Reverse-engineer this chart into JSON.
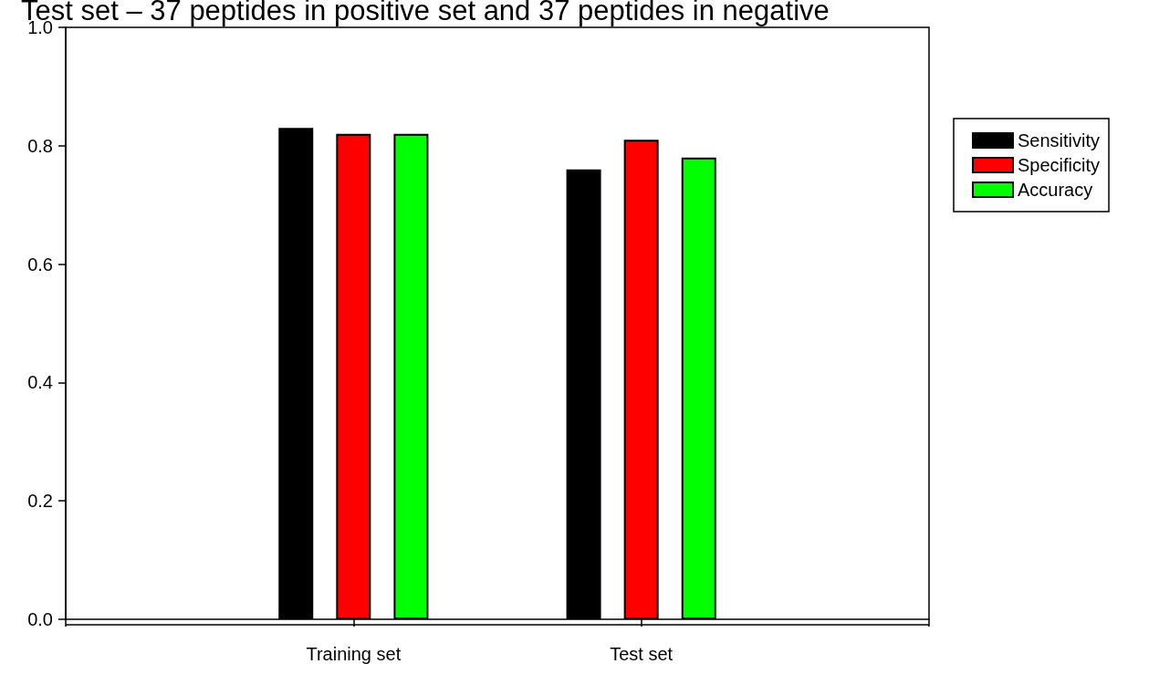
{
  "chart_data": {
    "type": "bar",
    "title": "Test set – 37 peptides in positive set and 37 peptides in negative",
    "categories": [
      "Training set",
      "Test set"
    ],
    "series": [
      {
        "name": "Sensitivity",
        "color": "#000000",
        "values": [
          0.83,
          0.76
        ]
      },
      {
        "name": "Specificity",
        "color": "#ff0000",
        "values": [
          0.82,
          0.81
        ]
      },
      {
        "name": "Accuracy",
        "color": "#00ff00",
        "values": [
          0.82,
          0.78
        ]
      }
    ],
    "ylim": [
      0,
      1
    ],
    "yticks": [
      {
        "value": 0,
        "label": "0.0"
      },
      0.2,
      0.4,
      0.6,
      0.8,
      {
        "value": 1,
        "label": "1.0"
      }
    ],
    "grid": false,
    "legend": "right"
  }
}
